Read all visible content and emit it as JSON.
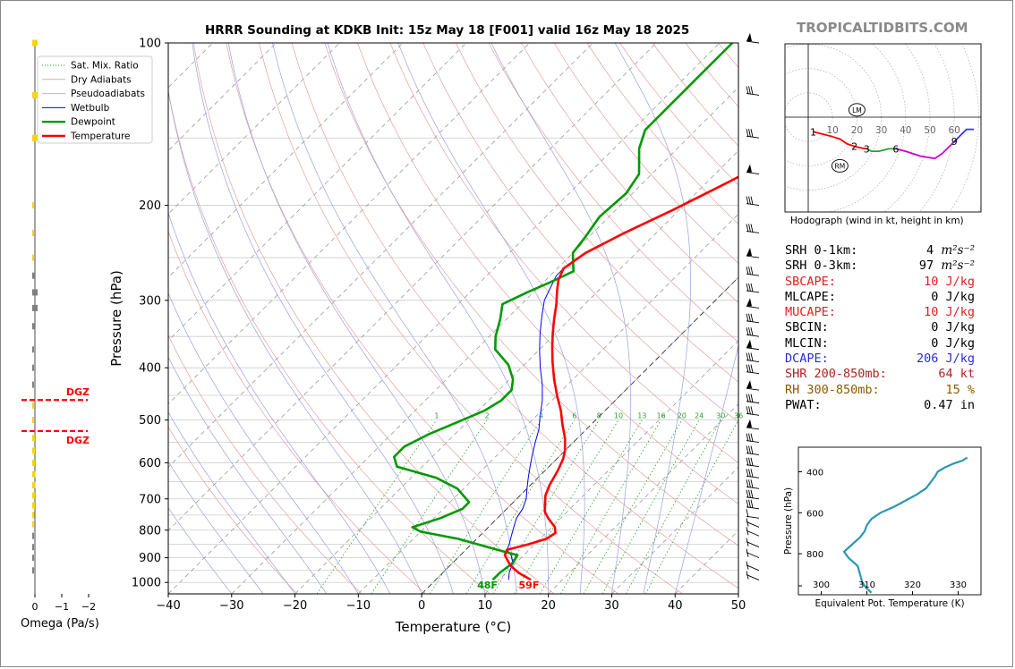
{
  "header": {
    "title": "HRRR Sounding at KDKB Init: 15z May 18 [F001] valid 16z May 18 2025",
    "brand": "TROPICALTIDBITS.COM"
  },
  "colors": {
    "temperature": "#ff0000",
    "dewpoint": "#009900",
    "wetbulb": "#0000ff",
    "theta_e": "#2b97b0",
    "dgz": "#ff0000",
    "omega_pos": "#f5d50f",
    "omega_neg": "#808080"
  },
  "legend": {
    "items": [
      {
        "label": "Sat. Mix. Ratio",
        "color": "#009900",
        "style": "dotted"
      },
      {
        "label": "Dry Adiabats",
        "color": "#bbbbbb",
        "style": "solid"
      },
      {
        "label": "Pseudoadiabats",
        "color": "#bbbbbb",
        "style": "solid"
      },
      {
        "label": "Wetbulb",
        "color": "#0000ff",
        "style": "solid"
      },
      {
        "label": "Dewpoint",
        "color": "#009900",
        "style": "thick"
      },
      {
        "label": "Temperature",
        "color": "#ff0000",
        "style": "thick"
      }
    ]
  },
  "skewt": {
    "xlabel": "Temperature (°C)",
    "ylabel": "Pressure (hPa)",
    "surface_dewpoint_label": "48F",
    "surface_temperature_label": "59F",
    "mixing_ratio_labels": [
      "1",
      "2",
      "4",
      "6",
      "8",
      "10",
      "13",
      "16",
      "20",
      "24",
      "30",
      "36"
    ],
    "dgz_label": "DGZ"
  },
  "chart_data": [
    {
      "type": "line",
      "name": "skew-t",
      "title": "HRRR Sounding at KDKB Init: 15z May 18 [F001] valid 16z May 18 2025",
      "xlabel": "Temperature (°C)",
      "ylabel": "Pressure (hPa)",
      "xlim": [
        -40,
        50
      ],
      "ylim": [
        1050,
        100
      ],
      "y_scale": "log",
      "x_ticks": [
        -40,
        -30,
        -20,
        -10,
        0,
        10,
        20,
        30,
        40,
        50
      ],
      "y_ticks": [
        1000,
        900,
        800,
        700,
        600,
        500,
        400,
        300,
        200,
        100
      ],
      "grid": true,
      "legend_position": "top-left",
      "series": [
        {
          "name": "Temperature",
          "points": [
            [
              15.0,
              989
            ],
            [
              12.0,
              960
            ],
            [
              9.5,
              930
            ],
            [
              7.0,
              890
            ],
            [
              6.5,
              870
            ],
            [
              9.0,
              850
            ],
            [
              11.0,
              830
            ],
            [
              11.5,
              810
            ],
            [
              10.5,
              790
            ],
            [
              8.0,
              760
            ],
            [
              6.5,
              740
            ],
            [
              5.5,
              720
            ],
            [
              4.0,
              690
            ],
            [
              3.0,
              660
            ],
            [
              2.0,
              620
            ],
            [
              1.0,
              590
            ],
            [
              0.0,
              570
            ],
            [
              -2.0,
              540
            ],
            [
              -4.5,
              510
            ],
            [
              -7.0,
              480
            ],
            [
              -10.0,
              450
            ],
            [
              -13.0,
              420
            ],
            [
              -16.0,
              390
            ],
            [
              -18.5,
              365
            ],
            [
              -20.5,
              345
            ],
            [
              -22.5,
              325
            ],
            [
              -24.5,
              305
            ],
            [
              -26.5,
              288
            ],
            [
              -28.0,
              275
            ],
            [
              -29.0,
              262
            ],
            [
              -28.0,
              245
            ],
            [
              -25.0,
              225
            ],
            [
              -21.0,
              204
            ],
            [
              -17.0,
              183
            ],
            [
              -14.0,
              168
            ],
            [
              -11.0,
              153
            ],
            [
              -10.0,
              140
            ],
            [
              -9.0,
              128
            ],
            [
              -9.0,
              110
            ],
            [
              -9.5,
              100
            ]
          ]
        },
        {
          "name": "Dewpoint",
          "points": [
            [
              9.0,
              989
            ],
            [
              9.0,
              960
            ],
            [
              9.5,
              920
            ],
            [
              9.0,
              890
            ],
            [
              5.0,
              870
            ],
            [
              -3.0,
              830
            ],
            [
              -10.0,
              805
            ],
            [
              -12.0,
              790
            ],
            [
              -9.0,
              760
            ],
            [
              -7.0,
              730
            ],
            [
              -7.0,
              710
            ],
            [
              -11.0,
              670
            ],
            [
              -16.0,
              640
            ],
            [
              -24.0,
              610
            ],
            [
              -26.0,
              585
            ],
            [
              -26.0,
              560
            ],
            [
              -24.0,
              530
            ],
            [
              -21.0,
              500
            ],
            [
              -19.0,
              480
            ],
            [
              -18.0,
              460
            ],
            [
              -18.0,
              440
            ],
            [
              -19.5,
              420
            ],
            [
              -22.5,
              395
            ],
            [
              -27.0,
              370
            ],
            [
              -29.0,
              350
            ],
            [
              -31.0,
              325
            ],
            [
              -33.0,
              305
            ],
            [
              -31.0,
              290
            ],
            [
              -29.0,
              278
            ],
            [
              -27.0,
              265
            ],
            [
              -30.0,
              245
            ],
            [
              -30.5,
              230
            ],
            [
              -31.5,
              210
            ],
            [
              -31.0,
              190
            ],
            [
              -32.0,
              175
            ],
            [
              -36.0,
              157
            ],
            [
              -38.0,
              145
            ],
            [
              -38.0,
              130
            ],
            [
              -38.0,
              115
            ],
            [
              -38.0,
              100
            ]
          ]
        },
        {
          "name": "Wetbulb",
          "points": [
            [
              11.5,
              989
            ],
            [
              10.5,
              960
            ],
            [
              9.5,
              920
            ],
            [
              8.0,
              890
            ],
            [
              6.5,
              870
            ],
            [
              6.0,
              850
            ],
            [
              5.0,
              820
            ],
            [
              4.0,
              790
            ],
            [
              3.0,
              760
            ],
            [
              2.5,
              730
            ],
            [
              1.5,
              700
            ],
            [
              0.0,
              670
            ],
            [
              -1.5,
              640
            ],
            [
              -3.0,
              610
            ],
            [
              -4.5,
              580
            ],
            [
              -6.0,
              550
            ],
            [
              -7.5,
              520
            ],
            [
              -9.5,
              490
            ],
            [
              -11.5,
              460
            ],
            [
              -14.0,
              430
            ],
            [
              -17.0,
              400
            ],
            [
              -20.0,
              370
            ],
            [
              -22.5,
              345
            ],
            [
              -25.0,
              320
            ],
            [
              -27.0,
              300
            ],
            [
              -28.0,
              285
            ],
            [
              -29.0,
              270
            ],
            [
              -29.0,
              262
            ],
            [
              -28.0,
              245
            ],
            [
              -25.0,
              225
            ],
            [
              -21.0,
              204
            ],
            [
              -17.0,
              183
            ],
            [
              -14.0,
              168
            ],
            [
              -11.0,
              153
            ],
            [
              -10.0,
              140
            ],
            [
              -9.0,
              128
            ],
            [
              -9.0,
              110
            ],
            [
              -9.5,
              100
            ]
          ]
        }
      ]
    },
    {
      "type": "line",
      "name": "hodograph",
      "xlabel": "Hodograph (wind in kt, height in km)",
      "x_ring_labels": [
        "10",
        "20",
        "30",
        "40",
        "50",
        "60"
      ],
      "height_labels": [
        "1",
        "2",
        "3",
        "6",
        "9"
      ],
      "markers": [
        "LM",
        "RM"
      ],
      "series": [
        {
          "name": "0-1km",
          "color": "#ff0000",
          "points": [
            [
              2,
              6
            ],
            [
              6,
              7
            ],
            [
              10,
              8
            ]
          ]
        },
        {
          "name": "1-3km",
          "color": "#ff0000",
          "points": [
            [
              10,
              8
            ],
            [
              13,
              9
            ],
            [
              16,
              11
            ],
            [
              19,
              12
            ],
            [
              21,
              12.5
            ],
            [
              24,
              13
            ]
          ]
        },
        {
          "name": "3-6km",
          "color": "#2ca02c",
          "points": [
            [
              24,
              13
            ],
            [
              26,
              14
            ],
            [
              29,
              14
            ],
            [
              33,
              13
            ],
            [
              36,
              13
            ]
          ]
        },
        {
          "name": "6-9km",
          "color": "#cc00cc",
          "points": [
            [
              36,
              13
            ],
            [
              40,
              14
            ],
            [
              46,
              16
            ],
            [
              52,
              17
            ],
            [
              55,
              15
            ],
            [
              58,
              12
            ],
            [
              60,
              10
            ]
          ]
        },
        {
          "name": "9+km",
          "color": "#3333ff",
          "points": [
            [
              60,
              10
            ],
            [
              63,
              7
            ],
            [
              65,
              5
            ],
            [
              68,
              5
            ]
          ]
        }
      ],
      "lm": [
        20,
        -3
      ],
      "rm": [
        13,
        20
      ]
    },
    {
      "type": "line",
      "name": "theta-e",
      "xlabel": "Equivalent Pot. Temperature (K)",
      "ylabel": "Pressure (hPa)",
      "xlim": [
        295,
        335
      ],
      "ylim": [
        1000,
        280
      ],
      "x_ticks": [
        300,
        310,
        320,
        330
      ],
      "y_ticks": [
        400,
        600,
        800
      ],
      "series": [
        {
          "name": "Theta-E",
          "points": [
            [
              311,
              990
            ],
            [
              310,
              970
            ],
            [
              309,
              940
            ],
            [
              308.5,
              900
            ],
            [
              308,
              860
            ],
            [
              306,
              820
            ],
            [
              305,
              790
            ],
            [
              306.5,
              760
            ],
            [
              308.5,
              720
            ],
            [
              309.5,
              690
            ],
            [
              310,
              660
            ],
            [
              311,
              630
            ],
            [
              313,
              600
            ],
            [
              316,
              570
            ],
            [
              318.5,
              540
            ],
            [
              321,
              510
            ],
            [
              323,
              480
            ],
            [
              324,
              450
            ],
            [
              325,
              420
            ],
            [
              325.5,
              400
            ],
            [
              327,
              380
            ],
            [
              329,
              360
            ],
            [
              331,
              345
            ],
            [
              332,
              330
            ]
          ]
        }
      ]
    },
    {
      "type": "bar",
      "name": "omega",
      "xlabel": "Omega (Pa/s)",
      "x_ticks": [
        "0",
        "−1",
        "−2"
      ],
      "dgz": [
        459,
        524
      ],
      "levels": [
        {
          "p": 100,
          "v": -0.1
        },
        {
          "p": 125,
          "v": -0.1
        },
        {
          "p": 150,
          "v": -0.1
        },
        {
          "p": 200,
          "v": -0.02
        },
        {
          "p": 225,
          "v": -0.02
        },
        {
          "p": 250,
          "v": -0.02
        },
        {
          "p": 270,
          "v": 0.05
        },
        {
          "p": 290,
          "v": 0.1
        },
        {
          "p": 310,
          "v": 0.1
        },
        {
          "p": 335,
          "v": 0.05
        },
        {
          "p": 370,
          "v": 0.02
        },
        {
          "p": 400,
          "v": 0.02
        },
        {
          "p": 430,
          "v": 0.02
        },
        {
          "p": 470,
          "v": -0.03
        },
        {
          "p": 500,
          "v": -0.03
        },
        {
          "p": 540,
          "v": -0.05
        },
        {
          "p": 570,
          "v": -0.05
        },
        {
          "p": 600,
          "v": -0.05
        },
        {
          "p": 630,
          "v": -0.06
        },
        {
          "p": 660,
          "v": -0.06
        },
        {
          "p": 690,
          "v": -0.05
        },
        {
          "p": 720,
          "v": -0.05
        },
        {
          "p": 750,
          "v": -0.04
        },
        {
          "p": 780,
          "v": -0.02
        },
        {
          "p": 820,
          "v": 0.01
        },
        {
          "p": 860,
          "v": 0.01
        },
        {
          "p": 900,
          "v": 0.01
        },
        {
          "p": 950,
          "v": 0.01
        }
      ]
    }
  ],
  "stats": [
    {
      "label": "SRH 0-1km:",
      "value": "4",
      "unit": "m²s⁻²",
      "color": "#000000"
    },
    {
      "label": "SRH 0-3km:",
      "value": "97",
      "unit": "m²s⁻²",
      "color": "#000000"
    },
    {
      "label": "SBCAPE:",
      "value": "10 J/kg",
      "unit": "",
      "color": "#e02020"
    },
    {
      "label": "MLCAPE:",
      "value": "0 J/kg",
      "unit": "",
      "color": "#000000"
    },
    {
      "label": "MUCAPE:",
      "value": "10 J/kg",
      "unit": "",
      "color": "#e02020"
    },
    {
      "label": "SBCIN:",
      "value": "0 J/kg",
      "unit": "",
      "color": "#000000"
    },
    {
      "label": "MLCIN:",
      "value": "0 J/kg",
      "unit": "",
      "color": "#000000"
    },
    {
      "label": "DCAPE:",
      "value": "206 J/kg",
      "unit": "",
      "color": "#2b2bd6"
    },
    {
      "label": "SHR 200-850mb:",
      "value": "64 kt",
      "unit": "",
      "color": "#b22222"
    },
    {
      "label": "RH 300-850mb:",
      "value": "15 %",
      "unit": "",
      "color": "#8b5a00"
    },
    {
      "label": "PWAT:",
      "value": "0.47 in",
      "unit": "",
      "color": "#000000"
    }
  ]
}
